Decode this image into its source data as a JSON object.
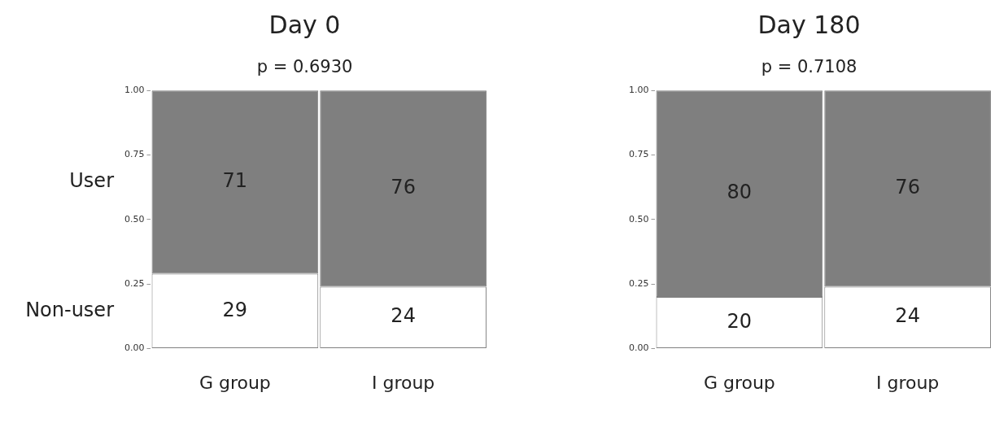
{
  "chart_data": [
    {
      "type": "bar",
      "title": "Day 0",
      "subtitle": "p = 0.6930",
      "categories": [
        "G group",
        "I group"
      ],
      "stacked": true,
      "ylim": [
        0,
        1
      ],
      "yticks": [
        {
          "value": 0,
          "label": "0.00"
        },
        {
          "value": 0.25,
          "label": "0.25"
        },
        {
          "value": 0.5,
          "label": "0.50"
        },
        {
          "value": 0.75,
          "label": "0.75"
        },
        {
          "value": 1,
          "label": "1.00"
        }
      ],
      "grid": false,
      "legend": false,
      "series": [
        {
          "name": "Non-user",
          "color": "#ffffff",
          "values": [
            0.29,
            0.24
          ]
        },
        {
          "name": "User",
          "color": "#7f7f7f",
          "values": [
            0.71,
            0.76
          ]
        }
      ],
      "annotations": [
        "29",
        "24",
        "71",
        "76"
      ]
    },
    {
      "type": "bar",
      "title": "Day 180",
      "subtitle": "p = 0.7108",
      "categories": [
        "G group",
        "I group"
      ],
      "stacked": true,
      "ylim": [
        0,
        1
      ],
      "yticks": [
        {
          "value": 0,
          "label": "0.00"
        },
        {
          "value": 0.25,
          "label": "0.25"
        },
        {
          "value": 0.5,
          "label": "0.50"
        },
        {
          "value": 0.75,
          "label": "0.75"
        },
        {
          "value": 1,
          "label": "1.00"
        }
      ],
      "grid": false,
      "legend": false,
      "series": [
        {
          "color": "#ffffff",
          "values": [
            0.2,
            0.24
          ]
        },
        {
          "color": "#7f7f7f",
          "values": [
            0.8,
            0.76
          ]
        }
      ],
      "annotations": [
        "20",
        "24",
        "80",
        "76"
      ]
    }
  ]
}
